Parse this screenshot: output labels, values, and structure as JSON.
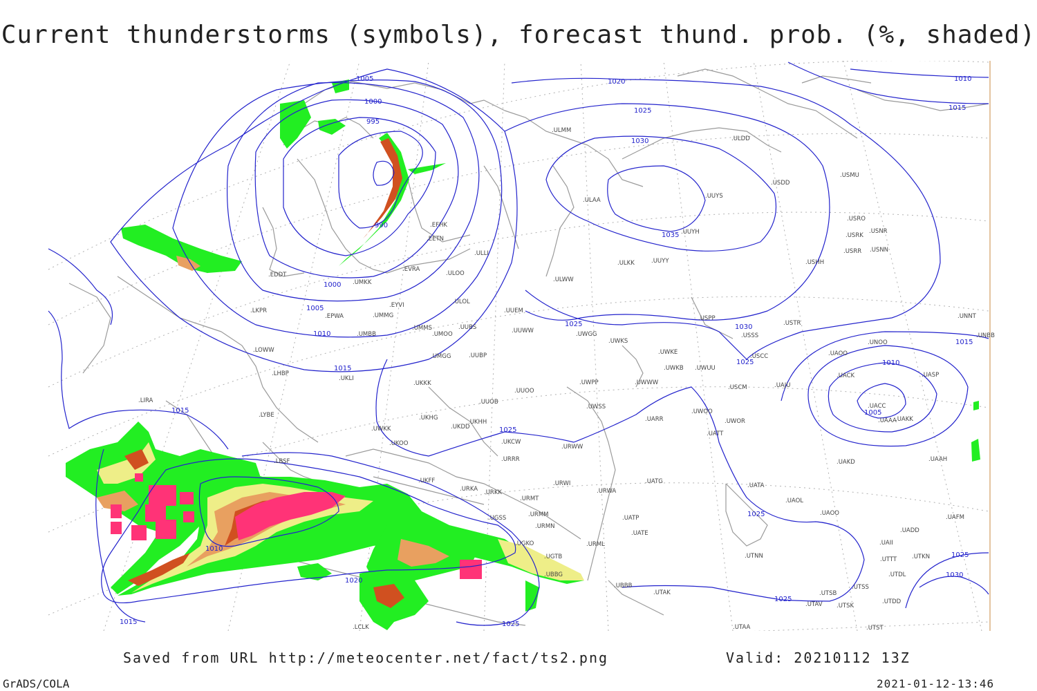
{
  "title": "Current thunderstorms (symbols), forecast thund. prob. (%, shaded)",
  "footer": {
    "saved": "Saved from URL http://meteocenter.net/fact/ts2.png",
    "valid": "Valid: 20210112 13Z",
    "credit": "GrADS/COLA",
    "generated": "2021-01-12-13:46"
  },
  "colors": {
    "isobar": "#2222cc",
    "coast": "#9a9a9a",
    "prob_low": "#22ee22",
    "prob_mid": "#eeee88",
    "prob_high": "#e8a060",
    "prob_top": "#d05020",
    "storm_symbol": "#ff3377"
  },
  "isobar_labels": [
    {
      "id": "l1005a",
      "text": "1005"
    },
    {
      "id": "l1000a",
      "text": "1000"
    },
    {
      "id": "l995",
      "text": "995"
    },
    {
      "id": "l990",
      "text": "990"
    },
    {
      "id": "l1000b",
      "text": "1000"
    },
    {
      "id": "l1005b",
      "text": "1005"
    },
    {
      "id": "l1010a",
      "text": "1010"
    },
    {
      "id": "l1015a",
      "text": "1015"
    },
    {
      "id": "l1020a",
      "text": "1020"
    },
    {
      "id": "l1025a",
      "text": "1025"
    },
    {
      "id": "l1030a",
      "text": "1030"
    },
    {
      "id": "l1035",
      "text": "1035"
    },
    {
      "id": "l1025b",
      "text": "1025"
    },
    {
      "id": "l1030b",
      "text": "1030"
    },
    {
      "id": "l1025c",
      "text": "1025"
    },
    {
      "id": "l1010b",
      "text": "1010"
    },
    {
      "id": "l1015b",
      "text": "1015"
    },
    {
      "id": "l1005c",
      "text": "1005"
    },
    {
      "id": "l1010c",
      "text": "1010"
    },
    {
      "id": "l1015c",
      "text": "1015"
    },
    {
      "id": "l1015d",
      "text": "1015"
    },
    {
      "id": "l1025d",
      "text": "1025"
    },
    {
      "id": "l1010d",
      "text": "1010"
    },
    {
      "id": "l1020b",
      "text": "1020"
    },
    {
      "id": "l1015e",
      "text": "1015"
    },
    {
      "id": "l1025e",
      "text": "1025"
    },
    {
      "id": "l1025f",
      "text": "1025"
    },
    {
      "id": "l1025g",
      "text": "1025"
    },
    {
      "id": "l1025h",
      "text": "1025"
    },
    {
      "id": "l1030c",
      "text": "1030"
    }
  ],
  "stations": [
    "ULMM",
    "ULDD",
    "UUYS",
    "UUYH",
    "ULAA",
    "USDD",
    "USMU",
    "USRO",
    "USRK",
    "USNR",
    "USRR",
    "USNN",
    "USHH",
    "ULKK",
    "UUYY",
    "ULWW",
    "EFHK",
    "EETN",
    "ULLI",
    "EVRA",
    "UMKK",
    "ULOO",
    "ULOL",
    "EYVI",
    "UMMG",
    "EPWA",
    "EDDT",
    "LKPR",
    "UUEM",
    "UUWW",
    "UWGG",
    "UWKS",
    "USPP",
    "USSS",
    "USTR",
    "UNNT",
    "UNBB",
    "UNOO",
    "UACC",
    "UMMS",
    "UMOO",
    "UUBS",
    "UMBB",
    "LOWW",
    "UMGG",
    "UUBP",
    "UKLI",
    "LHBP",
    "UWKE",
    "UWKB",
    "UWUU",
    "USCC",
    "UAOO",
    "UACK",
    "UASP",
    "UKKK",
    "UUOO",
    "UWPP",
    "UWWW",
    "USCM",
    "UAJU",
    "LIRA",
    "UUOB",
    "LYBE",
    "UKHG",
    "UKHH",
    "UKDD",
    "UKFF",
    "URKA",
    "URKK",
    "UKOO",
    "UKCW",
    "URRR",
    "URWW",
    "UWSS",
    "UWKK",
    "UAAA",
    "UAKK",
    "UAAH",
    "LBSF",
    "UAKD",
    "UARR",
    "UWOO",
    "UWOR",
    "UATT",
    "UATG",
    "URWI",
    "URWA",
    "URMT",
    "URMM",
    "URMN",
    "UATE",
    "UATP",
    "UATA",
    "UAOL",
    "UAOO",
    "UAFM",
    "UADD",
    "UGSS",
    "UGKO",
    "UGTB",
    "UBBG",
    "UBBB",
    "URML",
    "UTAK",
    "UTNN",
    "UAII",
    "UTTT",
    "UTKN",
    "UTSB",
    "UTSS",
    "UTDL",
    "UTAV",
    "UTSK",
    "UTDD",
    "UTAA",
    "UTST",
    "LCLK"
  ]
}
